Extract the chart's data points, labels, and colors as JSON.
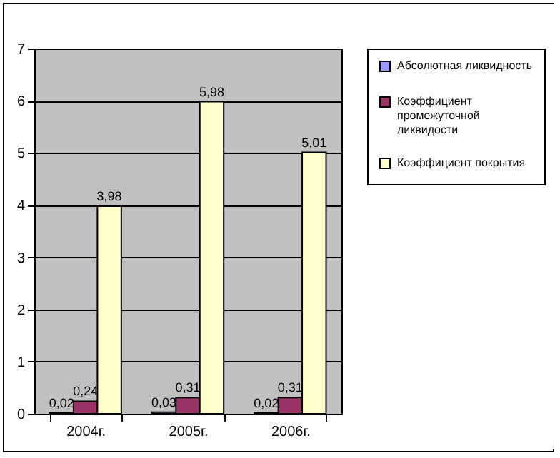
{
  "chart_data": {
    "type": "bar",
    "categories": [
      "2004г.",
      "2005г.",
      "2006г."
    ],
    "series": [
      {
        "name": "Абсолютная ликвидность",
        "color": "#9999ff",
        "values": [
          0.02,
          0.03,
          0.02
        ],
        "value_labels": [
          "0,02",
          "0,03",
          "0,02"
        ]
      },
      {
        "name": "Коэффициент промежуточной ликвидости",
        "color": "#993366",
        "values": [
          0.24,
          0.31,
          0.31
        ],
        "value_labels": [
          "0,24",
          "0,31",
          "0,31"
        ]
      },
      {
        "name": "Коэффициент покрытия",
        "color": "#ffffcc",
        "values": [
          3.98,
          5.98,
          5.01
        ],
        "value_labels": [
          "3,98",
          "5,98",
          "5,01"
        ]
      }
    ],
    "ylim": [
      0,
      7
    ],
    "yticks": [
      0,
      1,
      2,
      3,
      4,
      5,
      6,
      7
    ],
    "grid": "y",
    "legend": "right"
  }
}
